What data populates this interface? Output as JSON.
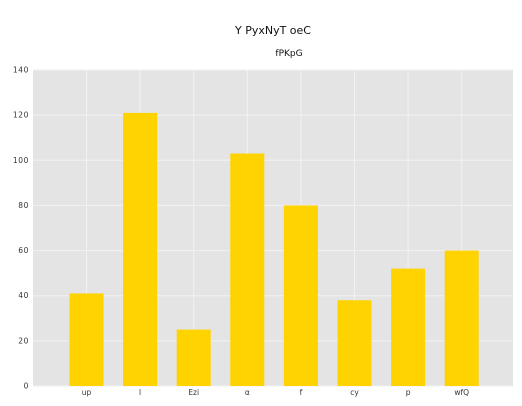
{
  "chart_data": {
    "type": "bar",
    "title": "Y PyxNyT   oeC",
    "subtitle": "fPKpG",
    "xlabel": "",
    "ylabel": "",
    "categories": [
      "up",
      "l",
      "Ezi",
      "α",
      "f",
      "cy",
      "p",
      "wfQ"
    ],
    "values": [
      41,
      121,
      25,
      103,
      80,
      38,
      52,
      60
    ],
    "ylim": [
      0,
      140
    ],
    "yticks": [
      0,
      20,
      40,
      60,
      80,
      100,
      120,
      140
    ],
    "grid": true,
    "legend": "none",
    "colors": {
      "bar": "#FFD300",
      "plot_background": "#E4E4E4",
      "grid": "#F2F2F2"
    }
  }
}
